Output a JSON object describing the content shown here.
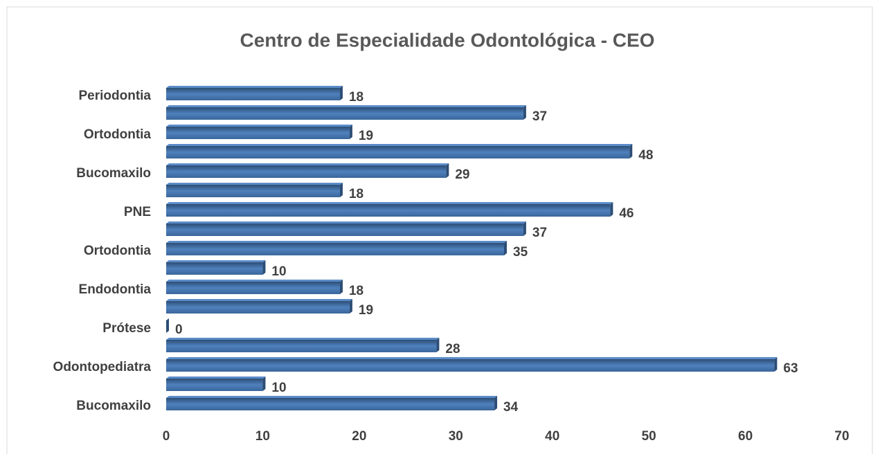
{
  "chart_data": {
    "type": "barh",
    "title": "Centro de Especialidade Odontológica - CEO",
    "categories": [
      "Periodontia",
      null,
      "Ortodontia",
      null,
      "Bucomaxilo",
      null,
      "PNE",
      null,
      "Ortodontia",
      null,
      "Endodontia",
      null,
      "Prótese",
      null,
      "Odontopediatra",
      null,
      "Bucomaxilo"
    ],
    "values": [
      18,
      37,
      19,
      48,
      29,
      18,
      46,
      37,
      35,
      10,
      18,
      19,
      0,
      28,
      63,
      10,
      34
    ],
    "color": "#4f81bd",
    "xlim": [
      0,
      70
    ],
    "xticks": [
      0,
      10,
      20,
      30,
      40,
      50,
      60,
      70
    ],
    "grid": false
  }
}
